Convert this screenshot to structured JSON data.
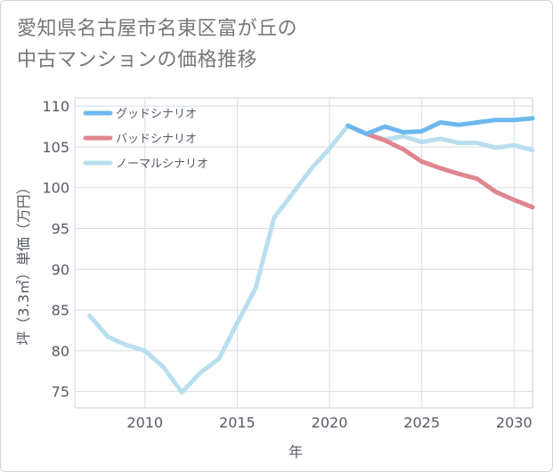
{
  "title": [
    "愛知県名古屋市名東区富が丘の",
    "中古マンションの価格推移"
  ],
  "chart_data": {
    "type": "line",
    "title": "愛知県名古屋市名東区富が丘の中古マンションの価格推移",
    "xlabel": "年",
    "ylabel": "坪（3.3㎡）単価（万円）",
    "xlim": [
      2006.2,
      2031
    ],
    "ylim": [
      73,
      111
    ],
    "x_ticks": [
      2010,
      2015,
      2020,
      2025,
      2030
    ],
    "y_ticks": [
      75,
      80,
      85,
      90,
      95,
      100,
      105,
      110
    ],
    "grid": true,
    "legend_position": "top-left",
    "series": [
      {
        "name": "グッドシナリオ",
        "color": "#6cb8ee",
        "x": [
          2021,
          2022,
          2023,
          2024,
          2025,
          2026,
          2027,
          2028,
          2029,
          2030,
          2031
        ],
        "y": [
          107.6,
          106.6,
          107.5,
          106.8,
          106.9,
          108.0,
          107.7,
          108.0,
          108.3,
          108.3,
          108.5
        ]
      },
      {
        "name": "バッドシナリオ",
        "color": "#e0868f",
        "x": [
          2021,
          2022,
          2023,
          2024,
          2025,
          2026,
          2027,
          2028,
          2029,
          2030,
          2031
        ],
        "y": [
          107.6,
          106.6,
          105.8,
          104.7,
          103.2,
          102.4,
          101.7,
          101.1,
          99.5,
          98.5,
          97.6
        ]
      },
      {
        "name": "ノーマルシナリオ",
        "color": "#b9dfef",
        "x": [
          2007,
          2008,
          2009,
          2010,
          2011,
          2012,
          2013,
          2014,
          2015,
          2016,
          2017,
          2018,
          2019,
          2020,
          2021,
          2022,
          2023,
          2024,
          2025,
          2026,
          2027,
          2028,
          2029,
          2030,
          2031
        ],
        "y": [
          84.3,
          81.7,
          80.7,
          80.0,
          78.0,
          74.9,
          77.3,
          79.0,
          83.4,
          87.7,
          96.3,
          99.3,
          102.3,
          104.8,
          107.6,
          106.6,
          105.9,
          106.3,
          105.6,
          106.0,
          105.5,
          105.5,
          104.9,
          105.2,
          104.6
        ]
      }
    ]
  }
}
